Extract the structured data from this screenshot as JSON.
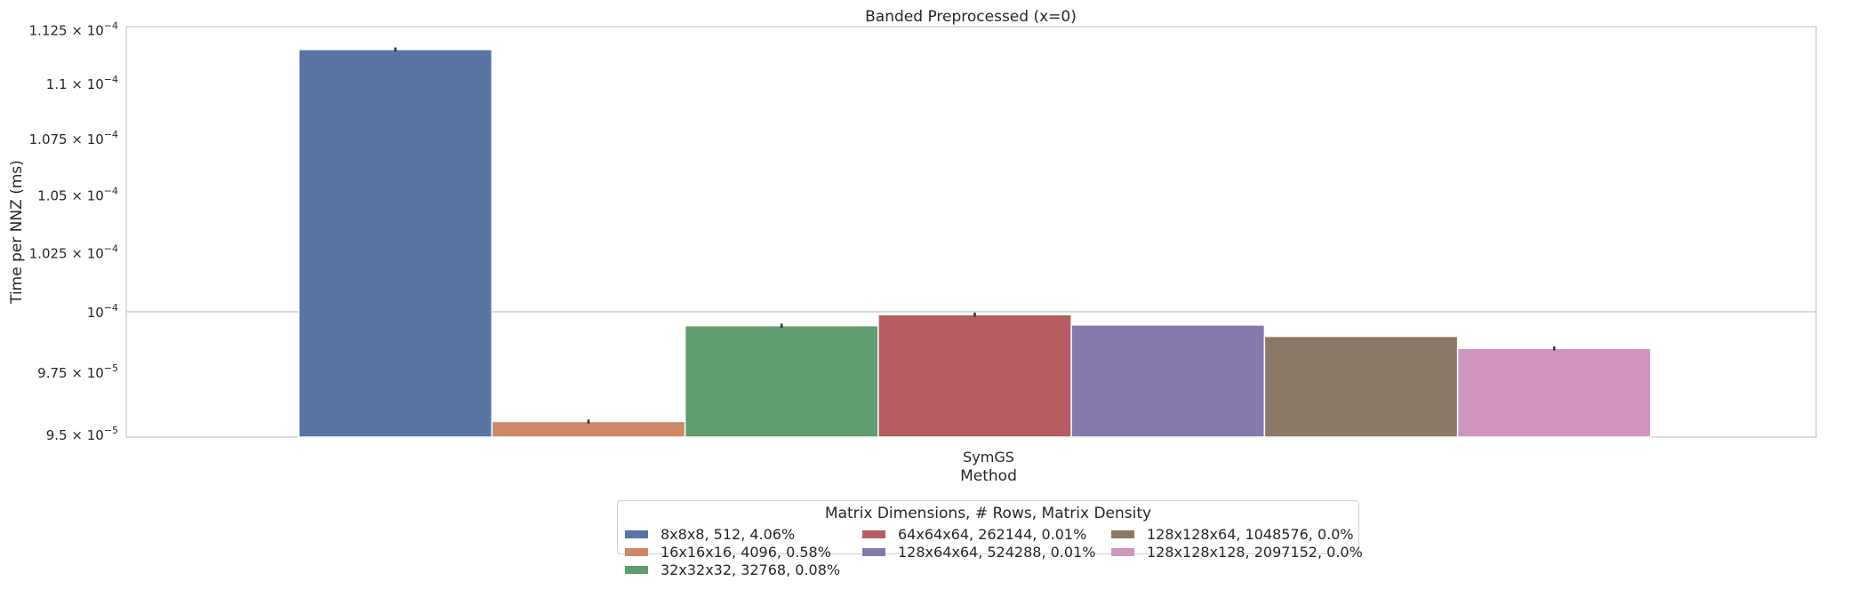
{
  "chart_data": {
    "type": "bar",
    "title": "Banded Preprocessed (x=0)",
    "xlabel": "Method",
    "ylabel": "Time per NNZ (ms)",
    "categories": [
      "SymGS"
    ],
    "ylim": [
      9.49e-05,
      0.00011265
    ],
    "yscale": "log",
    "grid": true,
    "yticks": [
      {
        "value": 9.5e-05,
        "mant": "9.5",
        "exp": "−5"
      },
      {
        "value": 9.75e-05,
        "mant": "9.75",
        "exp": "−5"
      },
      {
        "value": 0.0001,
        "mant": "",
        "exp": "−4"
      },
      {
        "value": 0.0001025,
        "mant": "1.025",
        "exp": "−4"
      },
      {
        "value": 0.000105,
        "mant": "1.05",
        "exp": "−4"
      },
      {
        "value": 0.0001075,
        "mant": "1.075",
        "exp": "−4"
      },
      {
        "value": 0.00011,
        "mant": "1.1",
        "exp": "−4"
      },
      {
        "value": 0.0001125,
        "mant": "1.125",
        "exp": "−4"
      }
    ],
    "series": [
      {
        "name": "8x8x8, 512, 4.06%",
        "color": "#5875a4",
        "values": [
          0.00011158
        ],
        "err": [
          1e-08
        ]
      },
      {
        "name": "16x16x16, 4096, 0.58%",
        "color": "#cc8963",
        "values": [
          9.552e-05
        ],
        "err": [
          1e-08
        ]
      },
      {
        "name": "32x32x32, 32768, 0.08%",
        "color": "#5f9e6e",
        "values": [
          9.942e-05
        ],
        "err": [
          1e-08
        ]
      },
      {
        "name": "64x64x64, 262144, 0.01%",
        "color": "#b55d60",
        "values": [
          9.988e-05
        ],
        "err": [
          1e-08
        ]
      },
      {
        "name": "128x64x64, 524288, 0.01%",
        "color": "#857aab",
        "values": [
          9.945e-05
        ],
        "err": [
          0
        ]
      },
      {
        "name": "128x128x64, 1048576, 0.0%",
        "color": "#8d7866",
        "values": [
          9.898e-05
        ],
        "err": [
          0
        ]
      },
      {
        "name": "128x128x128, 2097152, 0.0%",
        "color": "#d095bf",
        "values": [
          9.848e-05
        ],
        "err": [
          1e-08
        ]
      }
    ],
    "legend": {
      "title": "Matrix Dimensions, # Rows, Matrix Density",
      "position": "below",
      "columns": 3
    }
  }
}
